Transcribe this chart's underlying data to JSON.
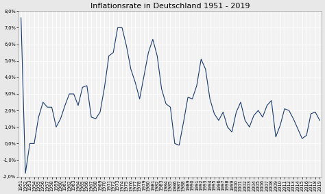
{
  "title": "Inflationsrate in Deutschland 1951 - 2019",
  "years": [
    1951,
    1952,
    1953,
    1954,
    1955,
    1956,
    1957,
    1958,
    1959,
    1960,
    1961,
    1962,
    1963,
    1964,
    1965,
    1966,
    1967,
    1968,
    1969,
    1970,
    1971,
    1972,
    1973,
    1974,
    1975,
    1976,
    1977,
    1978,
    1979,
    1980,
    1981,
    1982,
    1983,
    1984,
    1985,
    1986,
    1987,
    1988,
    1989,
    1990,
    1991,
    1992,
    1993,
    1994,
    1995,
    1996,
    1997,
    1998,
    1999,
    2000,
    2001,
    2002,
    2003,
    2004,
    2005,
    2006,
    2007,
    2008,
    2009,
    2010,
    2011,
    2012,
    2013,
    2014,
    2015,
    2016,
    2017,
    2018,
    2019
  ],
  "values": [
    7.6,
    -1.8,
    0.0,
    0.0,
    1.6,
    2.5,
    2.2,
    2.2,
    1.0,
    1.5,
    2.3,
    3.0,
    3.0,
    2.3,
    3.4,
    3.5,
    1.6,
    1.5,
    1.9,
    3.4,
    5.3,
    5.5,
    7.0,
    7.0,
    5.9,
    4.5,
    3.7,
    2.7,
    4.1,
    5.5,
    6.3,
    5.3,
    3.3,
    2.4,
    2.2,
    0.0,
    -0.1,
    1.3,
    2.8,
    2.7,
    3.5,
    5.1,
    4.5,
    2.7,
    1.8,
    1.4,
    1.9,
    1.0,
    0.7,
    1.9,
    2.5,
    1.4,
    1.0,
    1.7,
    2.0,
    1.6,
    2.3,
    2.6,
    0.4,
    1.1,
    2.1,
    2.0,
    1.5,
    0.9,
    0.3,
    0.5,
    1.8,
    1.9,
    1.4
  ],
  "line_color": "#1a3a6b",
  "bg_color": "#e8e8e8",
  "plot_bg_color": "#f2f2f2",
  "grid_color": "#ffffff",
  "ylim": [
    -2.0,
    8.0
  ],
  "yticks": [
    -2.0,
    -1.0,
    0.0,
    1.0,
    2.0,
    3.0,
    4.0,
    5.0,
    6.0,
    7.0,
    8.0
  ],
  "title_fontsize": 8,
  "tick_fontsize": 4.8
}
